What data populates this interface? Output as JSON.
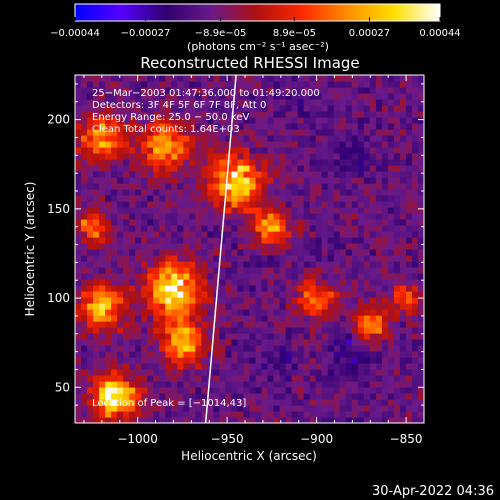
{
  "chart_data": {
    "type": "heatmap",
    "title": "Reconstructed RHESSI Image",
    "xlabel": "Heliocentric X (arcsec)",
    "ylabel": "Heliocentric Y (arcsec)",
    "xlim": [
      -1035,
      -840
    ],
    "ylim": [
      30,
      225
    ],
    "x_ticks": [
      -1000,
      -950,
      -900,
      -850
    ],
    "x_tick_labels": [
      "−1000",
      "−950",
      "−900",
      "−850"
    ],
    "y_ticks": [
      50,
      100,
      150,
      200
    ],
    "y_tick_labels": [
      "50",
      "100",
      "150",
      "200"
    ],
    "colorbar": {
      "range": [
        -0.00044,
        0.00044
      ],
      "tick_values": [
        -0.00044,
        -0.00027,
        -8.9e-05,
        8.9e-05,
        0.00027,
        0.00044
      ],
      "tick_labels": [
        "−0.00044",
        "−0.00027",
        "−8.9e−05",
        "8.9e−05",
        "0.00027",
        "0.00044"
      ],
      "unit_label": "(photons cm⁻² s⁻¹ asec⁻²)",
      "colormap": [
        "#0000ff",
        "#5500ff",
        "#300070",
        "#6a1a8a",
        "#b01010",
        "#ff2a00",
        "#ff9000",
        "#ffe000",
        "#ffffff"
      ]
    },
    "annotations": [
      "25−Mar−2003 01:47:36.000 to 01:49:20.000",
      "Detectors: 3F 4F 5F 6F 7F 8F, Att 0",
      "Energy Range: 25.0 − 50.0 keV",
      "Clean    Total counts: 1.64E+03"
    ],
    "peak_label": "Location of Peak = [−1014,43]",
    "peak_location": [
      -1014,
      43
    ],
    "limb_line": {
      "x_bottom": -962,
      "y_bottom": 30,
      "x_top": -945,
      "y_top": 225
    },
    "hot_regions": [
      {
        "x": -1020,
        "y": 190,
        "r": 12,
        "value": 0.00028
      },
      {
        "x": -985,
        "y": 185,
        "r": 14,
        "value": 0.00024
      },
      {
        "x": -945,
        "y": 165,
        "r": 14,
        "value": 0.00038
      },
      {
        "x": -925,
        "y": 140,
        "r": 10,
        "value": 0.00022
      },
      {
        "x": -980,
        "y": 105,
        "r": 15,
        "value": 0.0004
      },
      {
        "x": -1020,
        "y": 95,
        "r": 12,
        "value": 0.0003
      },
      {
        "x": -1012,
        "y": 45,
        "r": 12,
        "value": 0.00044
      },
      {
        "x": -975,
        "y": 75,
        "r": 12,
        "value": 0.0003
      },
      {
        "x": -900,
        "y": 100,
        "r": 11,
        "value": 0.00018
      },
      {
        "x": -870,
        "y": 85,
        "r": 10,
        "value": 0.0002
      },
      {
        "x": -850,
        "y": 100,
        "r": 8,
        "value": 0.00018
      },
      {
        "x": -1025,
        "y": 140,
        "r": 9,
        "value": 0.0002
      }
    ],
    "cold_regions": [
      {
        "x": -880,
        "y": 180,
        "r": 12,
        "value": -0.0002
      },
      {
        "x": -880,
        "y": 70,
        "r": 12,
        "value": -0.00025
      },
      {
        "x": -920,
        "y": 65,
        "r": 10,
        "value": -0.0002
      },
      {
        "x": -905,
        "y": 205,
        "r": 10,
        "value": -0.00018
      },
      {
        "x": -895,
        "y": 130,
        "r": 9,
        "value": -0.00016
      }
    ]
  },
  "footer": {
    "timestamp": "30-Apr-2022 04:36"
  }
}
